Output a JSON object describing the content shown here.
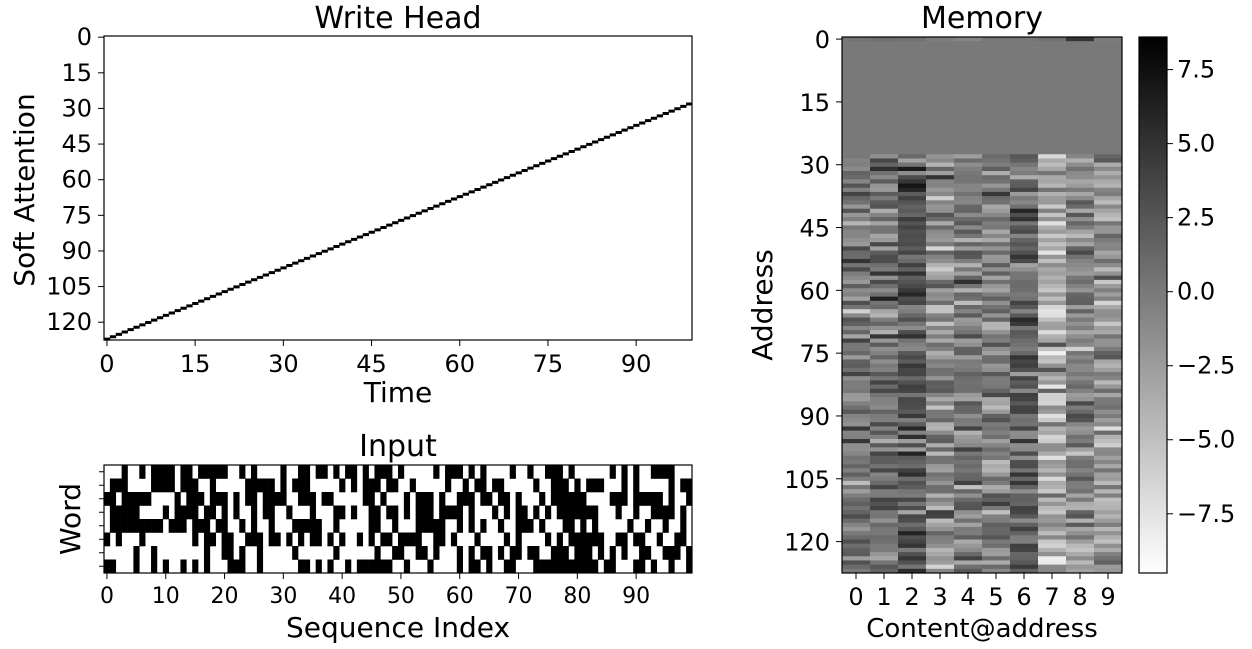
{
  "chart_data": [
    {
      "type": "heatmap",
      "title": "Write Head",
      "xlabel": "Time",
      "ylabel": "Soft Attention",
      "xlim": [
        0,
        100
      ],
      "ylim": [
        128,
        0
      ],
      "xticks": [
        "0",
        "15",
        "30",
        "45",
        "60",
        "75",
        "90"
      ],
      "yticks": [
        "0",
        "15",
        "30",
        "45",
        "60",
        "75",
        "90",
        "105",
        "120"
      ],
      "colormap": "binary",
      "attention_path": {
        "start": [
          0,
          127
        ],
        "end": [
          99,
          28
        ]
      }
    },
    {
      "type": "heatmap",
      "title": "Input",
      "xlabel": "Sequence Index",
      "ylabel": "Word",
      "xlim": [
        0,
        100
      ],
      "rows": 8,
      "binary": true,
      "xticks": [
        "0",
        "10",
        "20",
        "30",
        "40",
        "50",
        "60",
        "70",
        "80",
        "90"
      ],
      "colormap": "binary"
    },
    {
      "type": "heatmap",
      "title": "Memory",
      "xlabel": "Content@address",
      "ylabel": "Address",
      "columns": 10,
      "rows": 128,
      "xticks": [
        "0",
        "1",
        "2",
        "3",
        "4",
        "5",
        "6",
        "7",
        "8",
        "9"
      ],
      "yticks": [
        "0",
        "15",
        "30",
        "45",
        "60",
        "75",
        "90",
        "105",
        "120"
      ],
      "colorbar": {
        "ticks": [
          "7.5",
          "5.0",
          "2.5",
          "0.0",
          "−2.5",
          "−5.0",
          "−7.5"
        ],
        "tick_values": [
          7.5,
          5.0,
          2.5,
          0.0,
          -2.5,
          -5.0,
          -7.5
        ],
        "range": [
          -9.5,
          8.6
        ]
      },
      "blank_rows": [
        1,
        27
      ],
      "blank_value": 0.0,
      "colormap": "gray_r"
    }
  ]
}
